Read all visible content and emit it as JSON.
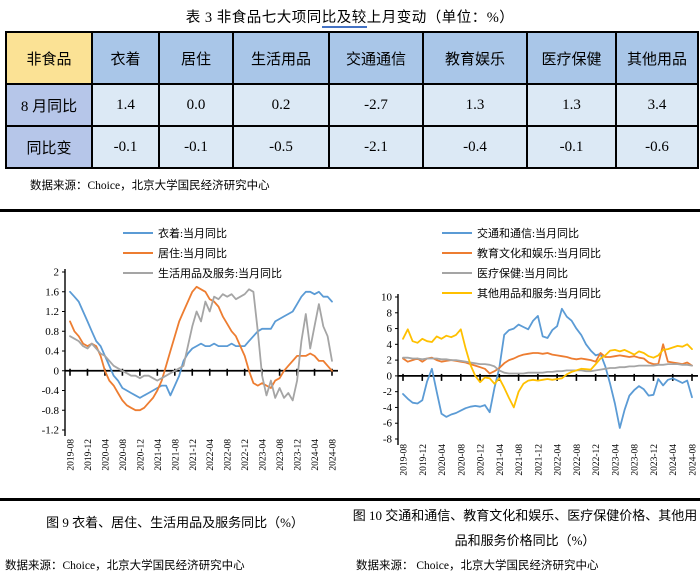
{
  "title": {
    "pre": "表 3  非食品七大项同",
    "underlined": "比及较",
    "post": "上月变动（单位：%）"
  },
  "table": {
    "corner": "非食品",
    "columns": [
      "衣着",
      "居住",
      "生活用品",
      "交通通信",
      "教育娱乐",
      "医疗保健",
      "其他用品"
    ],
    "rows": [
      {
        "label": "8 月同比",
        "values": [
          "1.4",
          "0.0",
          "0.2",
          "-2.7",
          "1.3",
          "1.3",
          "3.4"
        ]
      },
      {
        "label": "同比变",
        "values": [
          "-0.1",
          "-0.1",
          "-0.5",
          "-2.1",
          "-0.4",
          "-0.1",
          "-0.6"
        ]
      }
    ],
    "source": "数据来源：Choice，北京大学国民经济研究中心",
    "colors": {
      "corner_bg": "#FBE295",
      "header_bg": "#A9C6E8",
      "label_bg": "#B6C6E9",
      "cell_bg": "#DCE9F5"
    }
  },
  "captions": {
    "left": "图 9  衣着、居住、生活用品及服务同比（%）",
    "right": "图 10  交通和通信、教育文化和娱乐、医疗保健价格、其他用品和服务价格同比（%）"
  },
  "sources": {
    "left": "数据来源：Choice，北京大学国民经济研究中心",
    "right": "数据来源： Choice，北京大学国民经济研究中心"
  },
  "chart_data": [
    {
      "type": "line",
      "title": "图 9 衣着、居住、生活用品及服务同比（%）",
      "x_range": [
        "2019-08",
        "2024-08"
      ],
      "x_interval": "monthly",
      "x_tick_labels": [
        "2019-08",
        "2019-12",
        "2020-04",
        "2020-08",
        "2020-12",
        "2021-04",
        "2021-08",
        "2021-12",
        "2022-04",
        "2022-08",
        "2022-12",
        "2023-04",
        "2023-08",
        "2023-12",
        "2024-04",
        "2024-08"
      ],
      "ylim": [
        -1.2,
        2
      ],
      "ytick_step": 0.4,
      "grid": false,
      "legend_position": "top",
      "series": [
        {
          "name": "衣着:当月同比",
          "color": "#5B9BD5",
          "values": [
            1.6,
            1.5,
            1.4,
            1.2,
            1.0,
            0.8,
            0.6,
            0.5,
            0.3,
            0.1,
            -0.1,
            -0.2,
            -0.35,
            -0.4,
            -0.45,
            -0.5,
            -0.55,
            -0.5,
            -0.45,
            -0.4,
            -0.35,
            -0.3,
            -0.3,
            -0.5,
            -0.3,
            -0.1,
            0.2,
            0.35,
            0.45,
            0.5,
            0.55,
            0.5,
            0.5,
            0.55,
            0.5,
            0.5,
            0.5,
            0.55,
            0.5,
            0.5,
            0.5,
            0.6,
            0.7,
            0.8,
            0.85,
            0.85,
            0.85,
            1.0,
            1.05,
            1.1,
            1.15,
            1.2,
            1.35,
            1.5,
            1.6,
            1.6,
            1.55,
            1.6,
            1.5,
            1.5,
            1.4
          ]
        },
        {
          "name": "居住:当月同比",
          "color": "#ED7D31",
          "values": [
            1.0,
            0.8,
            0.7,
            0.55,
            0.5,
            0.55,
            0.5,
            0.3,
            0.0,
            -0.2,
            -0.3,
            -0.45,
            -0.6,
            -0.7,
            -0.75,
            -0.8,
            -0.8,
            -0.75,
            -0.65,
            -0.55,
            -0.4,
            -0.2,
            0.1,
            0.4,
            0.7,
            1.0,
            1.2,
            1.4,
            1.6,
            1.7,
            1.65,
            1.6,
            1.45,
            1.4,
            1.3,
            1.1,
            0.95,
            0.8,
            0.7,
            0.5,
            0.3,
            0.0,
            -0.25,
            -0.3,
            -0.25,
            -0.3,
            -0.35,
            -0.2,
            -0.15,
            0.0,
            0.1,
            0.2,
            0.3,
            0.3,
            0.3,
            0.35,
            0.3,
            0.2,
            0.2,
            0.1,
            0.0
          ]
        },
        {
          "name": "生活用品及服务:当月同比",
          "color": "#A5A5A5",
          "values": [
            0.7,
            0.65,
            0.6,
            0.5,
            0.45,
            0.55,
            0.45,
            0.35,
            0.3,
            0.2,
            0.1,
            0.05,
            0.0,
            -0.05,
            -0.1,
            -0.1,
            -0.15,
            -0.1,
            -0.1,
            -0.15,
            -0.2,
            -0.15,
            -0.1,
            -0.05,
            0.0,
            0.05,
            0.1,
            0.5,
            0.9,
            1.2,
            1.0,
            1.4,
            1.2,
            1.5,
            1.45,
            1.55,
            1.5,
            1.55,
            1.45,
            1.5,
            1.55,
            1.65,
            1.6,
            0.8,
            -0.1,
            -0.5,
            -0.2,
            -0.55,
            -0.35,
            -0.55,
            -0.45,
            -0.6,
            -0.2,
            0.6,
            1.15,
            0.45,
            0.9,
            1.35,
            0.9,
            0.7,
            0.2
          ]
        }
      ]
    },
    {
      "type": "line",
      "title": "图 10 交通和通信、教育文化和娱乐、医疗保健价格、其他用品和服务价格同比（%）",
      "x_range": [
        "2019-08",
        "2024-08"
      ],
      "x_interval": "monthly",
      "x_tick_labels": [
        "2019-08",
        "2019-12",
        "2020-04",
        "2020-08",
        "2020-12",
        "2021-04",
        "2021-08",
        "2021-12",
        "2022-04",
        "2022-08",
        "2022-12",
        "2023-04",
        "2023-08",
        "2023-12",
        "2024-04",
        "2024-08"
      ],
      "ylim": [
        -8,
        10
      ],
      "ytick_step": 2,
      "grid": false,
      "legend_position": "top",
      "series": [
        {
          "name": "交通和通信:当月同比",
          "color": "#5B9BD5",
          "values": [
            -2.3,
            -2.9,
            -3.4,
            -3.5,
            -3.1,
            -0.7,
            0.9,
            -2.0,
            -4.8,
            -5.2,
            -4.9,
            -4.7,
            -4.4,
            -4.1,
            -3.9,
            -3.8,
            -3.9,
            -3.7,
            -4.6,
            -1.5,
            1.0,
            5.2,
            5.8,
            6.0,
            6.5,
            6.2,
            5.9,
            7.0,
            7.6,
            5.0,
            4.8,
            5.8,
            6.3,
            8.5,
            7.5,
            7.0,
            6.0,
            5.2,
            4.0,
            3.2,
            2.6,
            2.8,
            1.2,
            -1.0,
            -3.5,
            -6.6,
            -4.3,
            -2.5,
            -1.8,
            -1.3,
            -1.7,
            -2.5,
            -2.4,
            -0.4,
            -1.2,
            -0.5,
            -0.3,
            -0.6,
            -0.9,
            -0.6,
            -2.7
          ]
        },
        {
          "name": "教育文化和娱乐:当月同比",
          "color": "#ED7D31",
          "values": [
            2.2,
            1.8,
            2.0,
            2.2,
            1.8,
            2.2,
            2.3,
            2.0,
            1.8,
            1.9,
            2.0,
            1.9,
            1.8,
            1.7,
            1.5,
            1.3,
            1.1,
            0.9,
            0.3,
            0.6,
            1.0,
            1.6,
            2.0,
            2.2,
            2.5,
            2.7,
            2.8,
            2.9,
            2.9,
            2.8,
            2.9,
            2.7,
            2.6,
            2.5,
            2.4,
            2.2,
            2.1,
            2.2,
            2.1,
            2.0,
            1.8,
            2.9,
            2.4,
            2.4,
            2.5,
            2.6,
            2.5,
            2.4,
            2.5,
            2.3,
            2.2,
            1.7,
            1.5,
            1.5,
            4.0,
            1.8,
            1.7,
            1.6,
            1.5,
            1.7,
            1.3
          ]
        },
        {
          "name": "医疗保健:当月同比",
          "color": "#A5A5A5",
          "values": [
            2.3,
            2.3,
            2.2,
            2.2,
            2.1,
            2.2,
            2.2,
            2.2,
            2.1,
            2.1,
            2.0,
            2.0,
            1.9,
            1.8,
            1.7,
            1.6,
            1.5,
            1.5,
            1.4,
            1.2,
            0.7,
            0.4,
            0.3,
            0.3,
            0.3,
            0.3,
            0.4,
            0.4,
            0.4,
            0.4,
            0.5,
            0.5,
            0.6,
            0.6,
            0.7,
            0.7,
            0.7,
            0.7,
            0.6,
            0.6,
            0.7,
            0.8,
            0.9,
            1.0,
            1.0,
            1.1,
            1.1,
            1.2,
            1.2,
            1.3,
            1.3,
            1.3,
            1.3,
            1.4,
            1.4,
            1.5,
            1.5,
            1.5,
            1.4,
            1.4,
            1.3
          ]
        },
        {
          "name": "其他用品和服务:当月同比",
          "color": "#FFC000",
          "values": [
            4.7,
            5.9,
            4.4,
            4.2,
            4.7,
            4.4,
            4.3,
            5.0,
            4.7,
            5.1,
            4.9,
            5.2,
            5.9,
            3.5,
            1.4,
            0.0,
            -0.8,
            -0.2,
            -0.3,
            -1.0,
            -0.3,
            -1.5,
            -2.8,
            -4.0,
            -2.0,
            -1.0,
            -0.6,
            -0.5,
            -0.6,
            -0.5,
            -0.4,
            -0.5,
            -0.4,
            -0.3,
            0.2,
            0.5,
            0.7,
            0.9,
            0.85,
            0.8,
            1.5,
            2.2,
            2.6,
            3.2,
            3.3,
            3.1,
            3.3,
            3.0,
            2.7,
            3.1,
            2.9,
            2.5,
            2.3,
            2.6,
            3.3,
            3.4,
            3.6,
            3.8,
            3.7,
            4.0,
            3.4
          ]
        }
      ]
    }
  ]
}
